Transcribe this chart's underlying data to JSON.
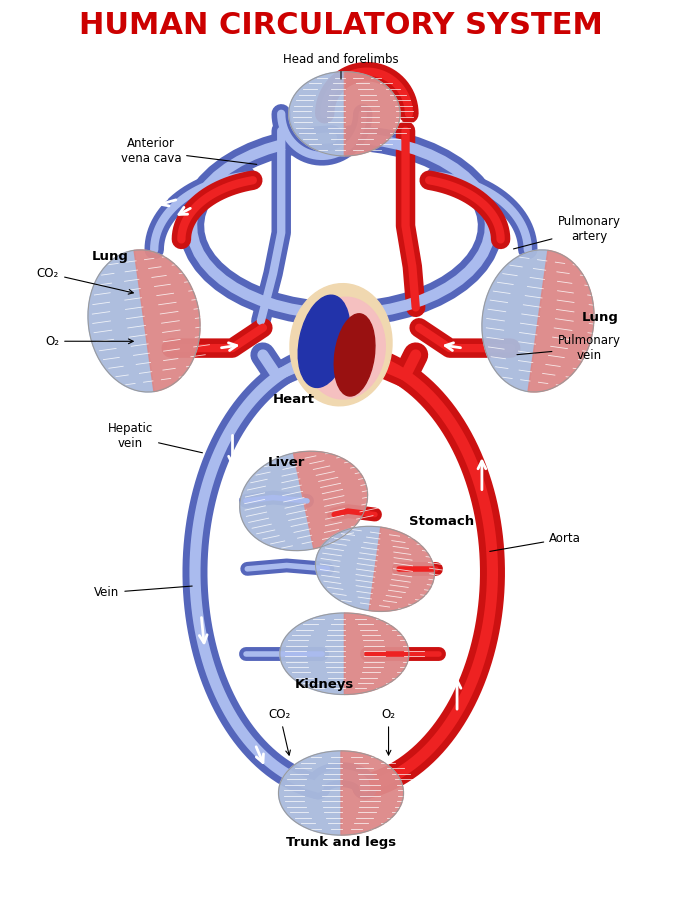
{
  "title": "HUMAN CIRCULATORY SYSTEM",
  "title_color": "#cc0000",
  "title_fontsize": 22,
  "bg_color": "#ffffff",
  "blue_dark": "#5566bb",
  "blue_mid": "#7788cc",
  "blue_light": "#aabbee",
  "red_dark": "#cc1111",
  "red_bright": "#ee2222",
  "organ_blue": "#aabbdd",
  "organ_red": "#dd8888",
  "organ_white": "#eeeeff",
  "heart_blue": "#2233aa",
  "heart_red": "#991111",
  "heart_peri": "#f0d8b0",
  "heart_peri2": "#f5c0c0",
  "labels": {
    "head_forelimbs": "Head and forelimbs",
    "anterior_vena_cava": "Anterior\nvena cava",
    "lung_left": "Lung",
    "lung_right": "Lung",
    "co2": "CO₂",
    "o2": "O₂",
    "pulmonary_artery": "Pulmonary\nartery",
    "pulmonary_vein": "Pulmonary\nvein",
    "heart": "Heart",
    "hepatic_vein": "Hepatic\nvein",
    "liver": "Liver",
    "stomach": "Stomach",
    "kidneys": "Kidneys",
    "aorta": "Aorta",
    "vein": "Vein",
    "trunk_legs": "Trunk and legs",
    "co2_bottom": "CO₂",
    "o2_bottom": "O₂"
  },
  "canvas_xlim": [
    0,
    10
  ],
  "canvas_ylim": [
    0,
    13.2
  ]
}
